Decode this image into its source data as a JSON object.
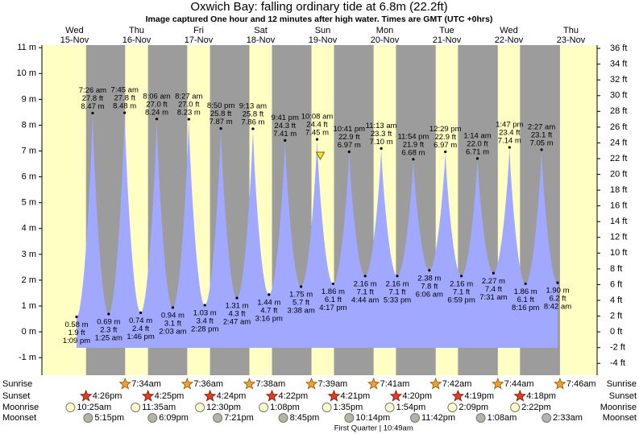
{
  "chart_data": {
    "type": "tide",
    "title": "Oxwich Bay: falling  ordinary tide at 6.8m (22.2ft)",
    "subtitle": "Image captured One hour and 12 minutes after high water. Times are GMT (UTC +0hrs)",
    "current_height": 6.8,
    "current_color": "#ffe040",
    "ylim": [
      -1.68,
      11.1
    ],
    "yticks": [
      {
        "value": -1,
        "label": "-1 m"
      },
      {
        "value": 0,
        "label": "0 m"
      },
      {
        "value": 1,
        "label": "1 m"
      },
      {
        "value": 2,
        "label": "2 m"
      },
      {
        "value": 3,
        "label": "3 m"
      },
      {
        "value": 4,
        "label": "4 m"
      },
      {
        "value": 5,
        "label": "5 m"
      },
      {
        "value": 6,
        "label": "6 m"
      },
      {
        "value": 7,
        "label": "7 m"
      },
      {
        "value": 8,
        "label": "8 m"
      },
      {
        "value": 9,
        "label": "9 m"
      },
      {
        "value": 10,
        "label": "10 m"
      },
      {
        "value": 11,
        "label": "11 m"
      }
    ],
    "y2lim": [
      -5.51,
      36.42
    ],
    "y2ticks": [
      {
        "value": -4,
        "label": "-4 ft"
      },
      {
        "value": -2,
        "label": "-2 ft"
      },
      {
        "value": 0,
        "label": "0 ft"
      },
      {
        "value": 2,
        "label": "2 ft"
      },
      {
        "value": 4,
        "label": "4 ft"
      },
      {
        "value": 6,
        "label": "6 ft"
      },
      {
        "value": 8,
        "label": "8 ft"
      },
      {
        "value": 10,
        "label": "10 ft"
      },
      {
        "value": 12,
        "label": "12 ft"
      },
      {
        "value": 14,
        "label": "14 ft"
      },
      {
        "value": 16,
        "label": "16 ft"
      },
      {
        "value": 18,
        "label": "18 ft"
      },
      {
        "value": 20,
        "label": "20 ft"
      },
      {
        "value": 22,
        "label": "22 ft"
      },
      {
        "value": 24,
        "label": "24 ft"
      },
      {
        "value": 26,
        "label": "26 ft"
      },
      {
        "value": 28,
        "label": "28 ft"
      },
      {
        "value": 30,
        "label": "30 ft"
      },
      {
        "value": 32,
        "label": "32 ft"
      },
      {
        "value": 34,
        "label": "34 ft"
      },
      {
        "value": 36,
        "label": "36 ft"
      }
    ],
    "tides": {
      "color": "#a0a8ff",
      "values": [
        0.58,
        8.47,
        0.69,
        8.48,
        0.74,
        8.24,
        0.94,
        8.23,
        1.03,
        7.87,
        1.31,
        7.86,
        1.44,
        7.41,
        1.75,
        7.45,
        1.86,
        6.97,
        2.16,
        7.1,
        2.16,
        6.68,
        2.38,
        6.97,
        2.16,
        6.71,
        2.27,
        7.14,
        1.86,
        7.05,
        1.9
      ],
      "value_labels": [
        "0.58 m",
        "8.47 m",
        "0.69 m",
        "8.48 m",
        "0.74 m",
        "8.24 m",
        "0.94 m",
        "8.23 m",
        "1.03 m",
        "7.87 m",
        "1.31 m",
        "7.86 m",
        "1.44 m",
        "7.41 m",
        "1.75 m",
        "7.45 m",
        "1.86 m",
        "6.97 m",
        "2.16 m",
        "7.10 m",
        "2.16 m",
        "6.68 m",
        "2.38 m",
        "6.97 m",
        "2.16 m",
        "6.71 m",
        "2.27 m",
        "7.14 m",
        "1.86 m",
        "7.05 m",
        "1.90 m"
      ],
      "heights_ft": [
        "1.9 ft",
        "27.8 ft",
        "2.3 ft",
        "27.8 ft",
        "2.4 ft",
        "27.0 ft",
        "3.1 ft",
        "27.0 ft",
        "3.4 ft",
        "25.8 ft",
        "4.3 ft",
        "25.8 ft",
        "4.7 ft",
        "24.3 ft",
        "5.7 ft",
        "24.4 ft",
        "6.1 ft",
        "22.9 ft",
        "7.1 ft",
        "23.3 ft",
        "7.1 ft",
        "21.9 ft",
        "7.8 ft",
        "22.9 ft",
        "7.1 ft",
        "22.0 ft",
        "7.4 ft",
        "23.4 ft",
        "6.1 ft",
        "23.1 ft",
        "6.2 ft"
      ],
      "times": [
        "1:09 pm",
        "7:26 am",
        "1:25 am",
        "7:45 am",
        "1:46 pm",
        "8:06 am",
        "2:03 am",
        "8:27 am",
        "2:28 pm",
        "8:50 pm",
        "2:47 am",
        "9:13 am",
        "3:16 pm",
        "9:41 pm",
        "3:38 am",
        "10:08 am",
        "4:17 pm",
        "10:41 pm",
        "4:44 am",
        "11:13 am",
        "5:33 pm",
        "11:54 pm",
        "6:06 am",
        "12:29 pm",
        "6:59 pm",
        "1:14 am",
        "7:31 am",
        "1:47 pm",
        "8:16 pm",
        "2:27 am",
        "8:42 am"
      ]
    },
    "day_color": "#ffffc4",
    "night_color": "#9c9c9c",
    "row_labels": [
      "Sunrise",
      "Sunset",
      "Moonrise",
      "Moonset"
    ],
    "days": [
      {
        "weekday": "Wed",
        "date": "15-Nov",
        "sunrise": null,
        "sunset": "4:26pm",
        "moonrise": "10:25am",
        "moonset": "5:15pm"
      },
      {
        "weekday": "Thu",
        "date": "16-Nov",
        "sunrise": "7:34am",
        "sunset": "4:25pm",
        "moonrise": "11:35am",
        "moonset": "6:09pm"
      },
      {
        "weekday": "Fri",
        "date": "17-Nov",
        "sunrise": "7:36am",
        "sunset": "4:24pm",
        "moonrise": "12:30pm",
        "moonset": "7:21pm"
      },
      {
        "weekday": "Sat",
        "date": "18-Nov",
        "sunrise": "7:38am",
        "sunset": "4:22pm",
        "moonrise": "1:08pm",
        "moonset": "8:45pm"
      },
      {
        "weekday": "Sun",
        "date": "19-Nov",
        "sunrise": "7:39am",
        "sunset": "4:21pm",
        "moonrise": "1:35pm",
        "moonset": "10:14pm",
        "moon_phase": "First Quarter | 10:49am"
      },
      {
        "weekday": "Mon",
        "date": "20-Nov",
        "sunrise": "7:41am",
        "sunset": "4:20pm",
        "moonrise": "1:54pm",
        "moonset": "11:42pm"
      },
      {
        "weekday": "Tue",
        "date": "21-Nov",
        "sunrise": "7:42am",
        "sunset": "4:19pm",
        "moonrise": "2:09pm",
        "moonset": null
      },
      {
        "weekday": "Wed",
        "date": "22-Nov",
        "sunrise": "7:44am",
        "sunset": "4:18pm",
        "moonrise": "2:22pm",
        "moonset": "1:08am"
      },
      {
        "weekday": "Thu",
        "date": "23-Nov",
        "sunrise": "7:46am",
        "sunset": null,
        "moonrise": null,
        "moonset": "2:33am"
      }
    ]
  }
}
